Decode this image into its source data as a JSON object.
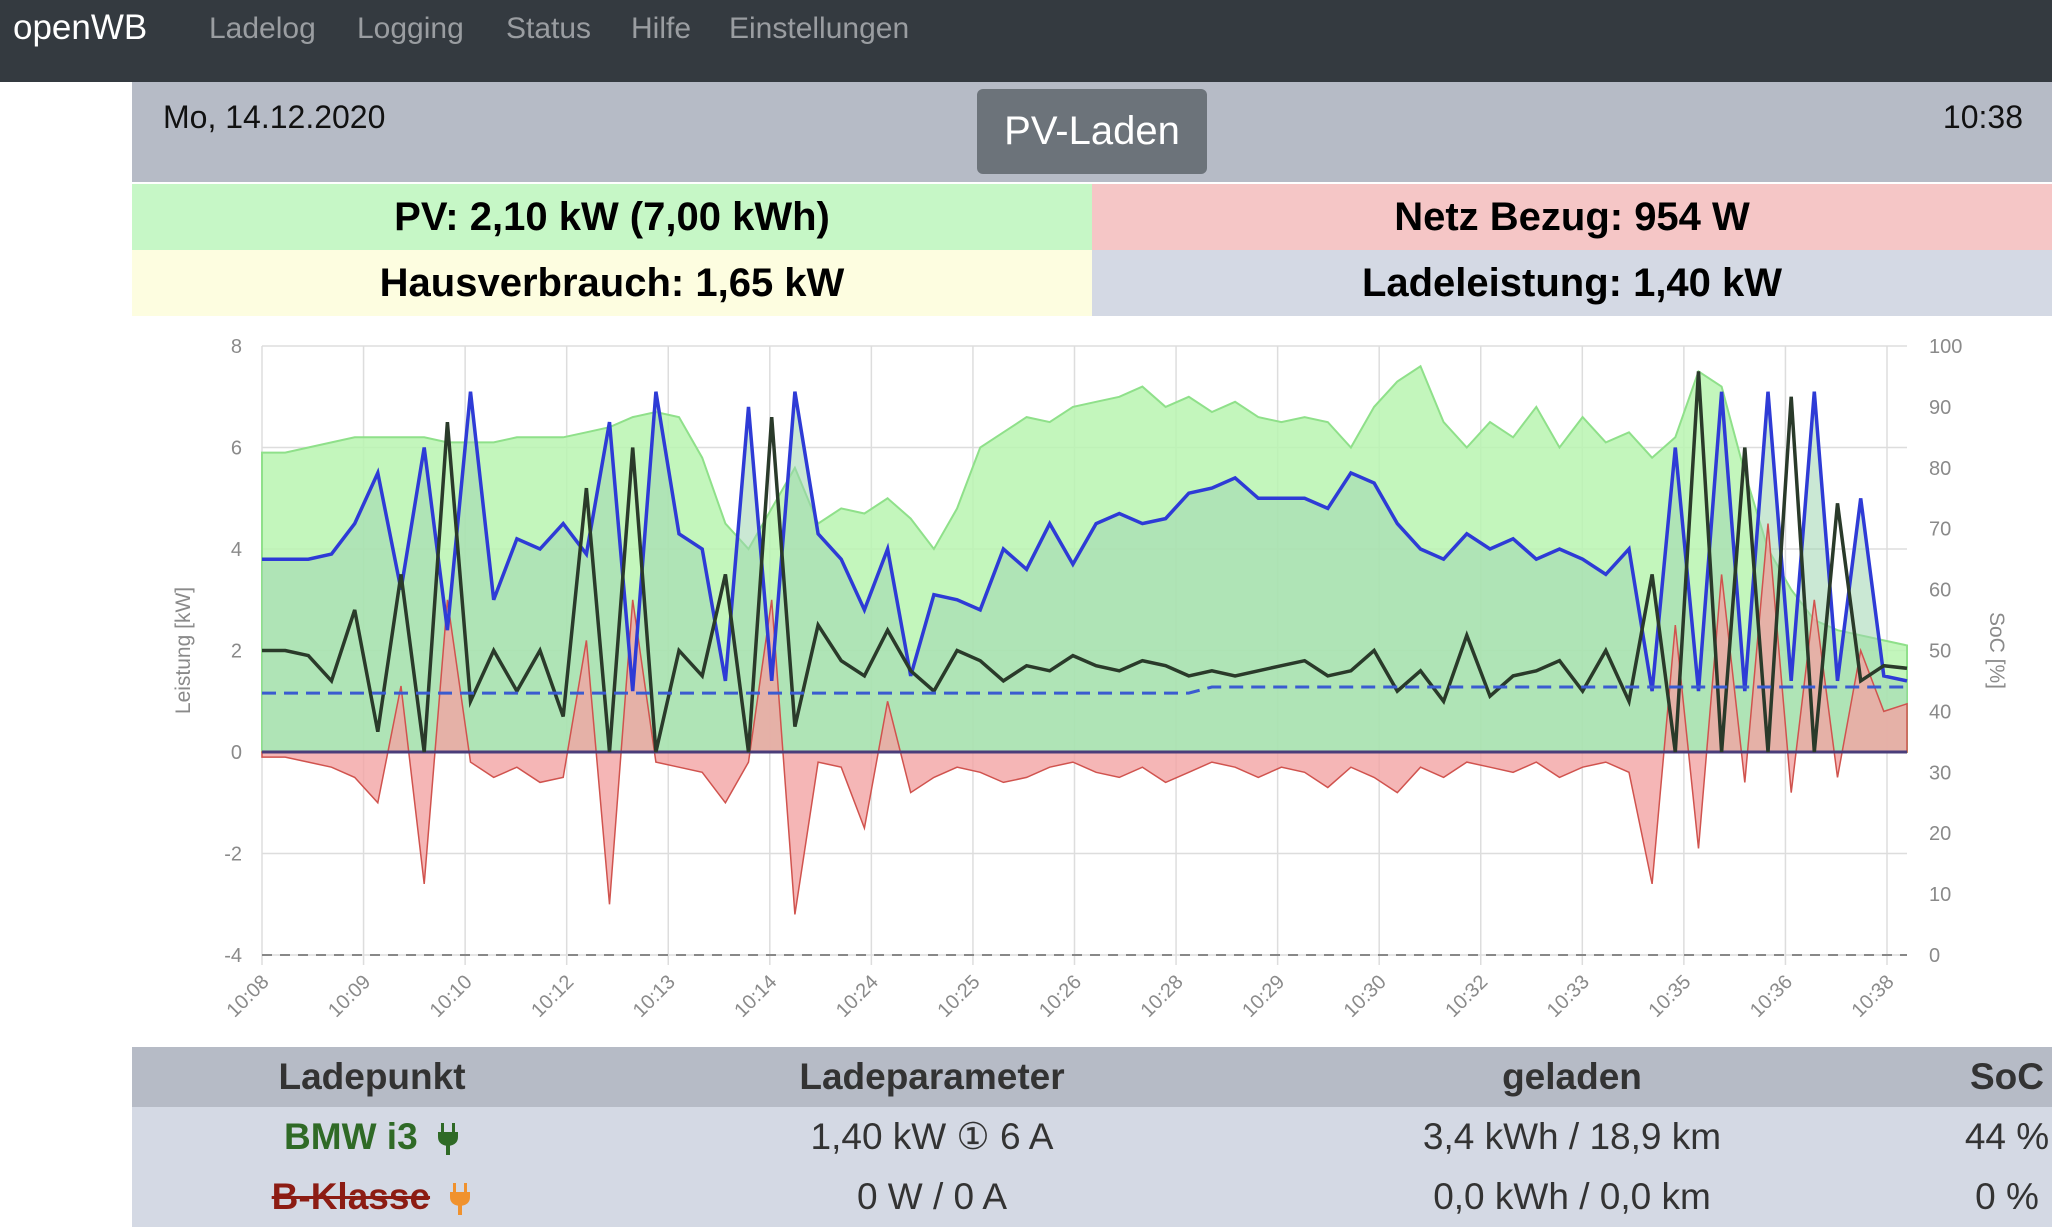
{
  "navbar": {
    "brand": "openWB",
    "items": [
      "Ladelog",
      "Logging",
      "Status",
      "Hilfe",
      "Einstellungen"
    ]
  },
  "header": {
    "date": "Mo, 14.12.2020",
    "time": "10:38",
    "mode_button": "PV-Laden"
  },
  "tiles": {
    "pv": "PV: 2,10 kW (7,00 kWh)",
    "netz": "Netz Bezug: 954 W",
    "haus": "Hausverbrauch: 1,65 kW",
    "lade": "Ladeleistung: 1,40 kW"
  },
  "colors": {
    "pv_fill": "#b8f5b0",
    "pv_line": "#8fe08a",
    "haus_line": "#2a3a2a",
    "blue_line": "#2e3bd6",
    "grid_line": "#d0534e",
    "grid_fill": "#f2a4a4",
    "soc_line": "#3a5bd0"
  },
  "chart_data": {
    "type": "area",
    "xlabels": [
      "10:08",
      "10:09",
      "10:10",
      "10:12",
      "10:13",
      "10:14",
      "10:24",
      "10:25",
      "10:26",
      "10:28",
      "10:29",
      "10:30",
      "10:32",
      "10:33",
      "10:35",
      "10:36",
      "10:38"
    ],
    "y_left": {
      "label": "Leistung [kW]",
      "min": -4,
      "max": 8,
      "ticks": [
        "8",
        "6",
        "4",
        "2",
        "0",
        "-2",
        "-4"
      ]
    },
    "y_right": {
      "label": "SoC [%]",
      "min": 0,
      "max": 100,
      "ticks": [
        "100",
        "90",
        "80",
        "70",
        "60",
        "50",
        "40",
        "30",
        "20",
        "10",
        "0"
      ]
    },
    "legend": "none",
    "grid": true,
    "series": [
      {
        "key": "pv",
        "values": [
          5.9,
          5.9,
          6.0,
          6.1,
          6.2,
          6.2,
          6.2,
          6.2,
          6.1,
          6.1,
          6.1,
          6.2,
          6.2,
          6.2,
          6.3,
          6.4,
          6.6,
          6.7,
          6.6,
          5.8,
          4.5,
          4.0,
          4.8,
          5.6,
          4.5,
          4.8,
          4.7,
          5.0,
          4.6,
          4.0,
          4.8,
          6.0,
          6.3,
          6.6,
          6.5,
          6.8,
          6.9,
          7.0,
          7.2,
          6.8,
          7.0,
          6.7,
          6.9,
          6.6,
          6.5,
          6.6,
          6.5,
          6.0,
          6.8,
          7.3,
          7.6,
          6.5,
          6.0,
          6.5,
          6.2,
          6.8,
          6.0,
          6.6,
          6.1,
          6.3,
          5.8,
          6.2,
          7.5,
          7.2,
          5.5,
          4.0,
          3.2,
          2.6,
          2.4,
          2.3,
          2.2,
          2.1
        ]
      },
      {
        "key": "blue",
        "values": [
          3.8,
          3.8,
          3.8,
          3.9,
          4.5,
          5.5,
          3.2,
          6.0,
          2.4,
          7.1,
          3.0,
          4.2,
          4.0,
          4.5,
          3.9,
          6.5,
          1.2,
          7.1,
          4.3,
          4.0,
          1.4,
          6.8,
          1.4,
          7.1,
          4.3,
          3.8,
          2.8,
          4.0,
          1.5,
          3.1,
          3.0,
          2.8,
          4.0,
          3.6,
          4.5,
          3.7,
          4.5,
          4.7,
          4.5,
          4.6,
          5.1,
          5.2,
          5.4,
          5.0,
          5.0,
          5.0,
          4.8,
          5.5,
          5.3,
          4.5,
          4.0,
          3.8,
          4.3,
          4.0,
          4.2,
          3.8,
          4.0,
          3.8,
          3.5,
          4.0,
          1.2,
          6.0,
          1.2,
          7.1,
          1.2,
          7.1,
          1.4,
          7.1,
          1.4,
          5.0,
          1.5,
          1.4
        ]
      },
      {
        "key": "haus",
        "values": [
          2.0,
          2.0,
          1.9,
          1.4,
          2.8,
          0.4,
          3.5,
          0.0,
          6.5,
          1.0,
          2.0,
          1.2,
          2.0,
          0.7,
          5.2,
          0.0,
          6.0,
          0.0,
          2.0,
          1.5,
          3.5,
          0.0,
          6.6,
          0.5,
          2.5,
          1.8,
          1.5,
          2.4,
          1.6,
          1.2,
          2.0,
          1.8,
          1.4,
          1.7,
          1.6,
          1.9,
          1.7,
          1.6,
          1.8,
          1.7,
          1.5,
          1.6,
          1.5,
          1.6,
          1.7,
          1.8,
          1.5,
          1.6,
          2.0,
          1.2,
          1.6,
          1.0,
          2.3,
          1.1,
          1.5,
          1.6,
          1.8,
          1.2,
          2.0,
          1.0,
          3.5,
          0.0,
          7.5,
          0.0,
          6.0,
          0.0,
          7.0,
          0.0,
          4.9,
          1.4,
          1.7,
          1.65
        ]
      },
      {
        "key": "netz",
        "values": [
          -0.1,
          -0.1,
          -0.2,
          -0.3,
          -0.5,
          -1.0,
          1.3,
          -2.6,
          3.0,
          -0.2,
          -0.5,
          -0.3,
          -0.6,
          -0.5,
          2.2,
          -3.0,
          3.0,
          -0.2,
          -0.3,
          -0.4,
          -1.0,
          -0.2,
          3.0,
          -3.2,
          -0.2,
          -0.3,
          -1.5,
          1.0,
          -0.8,
          -0.5,
          -0.3,
          -0.4,
          -0.6,
          -0.5,
          -0.3,
          -0.2,
          -0.4,
          -0.5,
          -0.3,
          -0.6,
          -0.4,
          -0.2,
          -0.3,
          -0.5,
          -0.3,
          -0.4,
          -0.7,
          -0.3,
          -0.5,
          -0.8,
          -0.3,
          -0.5,
          -0.2,
          -0.3,
          -0.4,
          -0.2,
          -0.5,
          -0.3,
          -0.2,
          -0.4,
          -2.6,
          2.5,
          -1.9,
          3.5,
          -0.6,
          4.5,
          -0.8,
          3.0,
          -0.5,
          2.0,
          0.8,
          0.95
        ]
      },
      {
        "key": "soc",
        "values": [
          43,
          43,
          43,
          43,
          43,
          43,
          43,
          43,
          43,
          43,
          43,
          43,
          43,
          43,
          43,
          43,
          43,
          43,
          43,
          43,
          43,
          43,
          43,
          43,
          43,
          43,
          43,
          43,
          43,
          43,
          43,
          43,
          43,
          43,
          43,
          43,
          43,
          43,
          43,
          43,
          43,
          44,
          44,
          44,
          44,
          44,
          44,
          44,
          44,
          44,
          44,
          44,
          44,
          44,
          44,
          44,
          44,
          44,
          44,
          44,
          44,
          44,
          44,
          44,
          44,
          44,
          44,
          44,
          44,
          44,
          44,
          44
        ]
      }
    ]
  },
  "table": {
    "headers": [
      "Ladepunkt",
      "Ladeparameter",
      "geladen",
      "SoC"
    ],
    "rows": [
      {
        "name": "BMW i3",
        "param": "1,40 kW ① 6 A",
        "loaded": "3,4 kWh / 18,9 km",
        "soc": "44 %"
      },
      {
        "name": "B-Klasse",
        "param": "0 W / 0 A",
        "loaded": "0,0 kWh / 0,0 km",
        "soc": "0 %"
      }
    ]
  }
}
